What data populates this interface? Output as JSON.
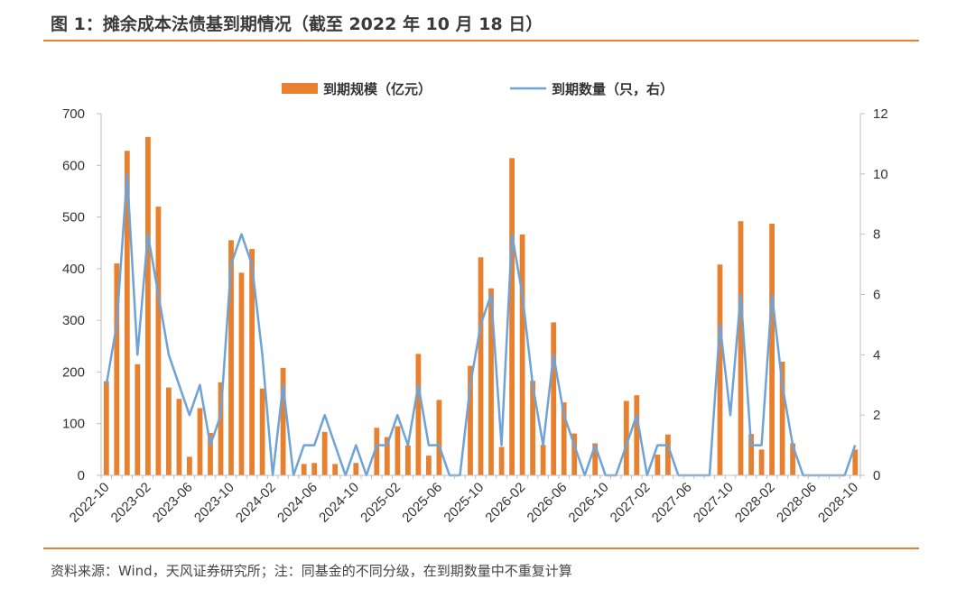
{
  "figure": {
    "title": "图 1：摊余成本法债基到期情况（截至 2022 年 10 月 18 日）",
    "source": "资料来源：Wind，天风证券研究所；注：同基金的不同分级，在到期数量中不重复计算"
  },
  "colors": {
    "bar": "#e8812f",
    "line": "#6fa3d8",
    "rule": "#e8812f"
  },
  "chart_data": {
    "type": "bar",
    "title": "",
    "xlabel": "",
    "ylabel": "",
    "y2label": "",
    "ylim": [
      0,
      700
    ],
    "y2lim": [
      0,
      12
    ],
    "yticks": [
      0,
      100,
      200,
      300,
      400,
      500,
      600,
      700
    ],
    "y2ticks": [
      0,
      2,
      4,
      6,
      8,
      10,
      12
    ],
    "grid": false,
    "legend_position": "top-center",
    "x_tick_labels": [
      "2022-10",
      "2023-02",
      "2023-06",
      "2023-10",
      "2024-02",
      "2024-06",
      "2024-10",
      "2025-02",
      "2025-06",
      "2025-10",
      "2026-02",
      "2026-06",
      "2026-10",
      "2027-02",
      "2027-06",
      "2027-10",
      "2028-02",
      "2028-06",
      "2028-10"
    ],
    "x_tick_every": 4,
    "series": [
      {
        "name": "到期规模（亿元）",
        "type": "bar",
        "axis": "left",
        "values": [
          182,
          410,
          628,
          215,
          655,
          520,
          170,
          148,
          36,
          130,
          82,
          180,
          455,
          392,
          438,
          168,
          0,
          208,
          0,
          22,
          24,
          84,
          22,
          0,
          24,
          0,
          92,
          74,
          95,
          58,
          235,
          38,
          146,
          0,
          0,
          212,
          422,
          362,
          55,
          614,
          466,
          183,
          59,
          296,
          141,
          81,
          0,
          62,
          0,
          0,
          144,
          155,
          0,
          40,
          79,
          0,
          0,
          0,
          0,
          408,
          0,
          492,
          80,
          50,
          487,
          220,
          62,
          0,
          0,
          0,
          0,
          0,
          50
        ]
      },
      {
        "name": "到期数量（只，右）",
        "type": "line",
        "axis": "right",
        "values": [
          3,
          5,
          10,
          4,
          8,
          6,
          4,
          3,
          2,
          3,
          1,
          2,
          7,
          8,
          7,
          4,
          0,
          3,
          0,
          1,
          1,
          2,
          1,
          0,
          1,
          0,
          1,
          1,
          2,
          1,
          3,
          1,
          1,
          0,
          0,
          3,
          5,
          6,
          1,
          8,
          6,
          3,
          1,
          4,
          2,
          1,
          0,
          1,
          0,
          0,
          1,
          2,
          0,
          1,
          1,
          0,
          0,
          0,
          0,
          5,
          2,
          6,
          1,
          1,
          6,
          3,
          1,
          0,
          0,
          0,
          0,
          0,
          1
        ]
      }
    ]
  }
}
